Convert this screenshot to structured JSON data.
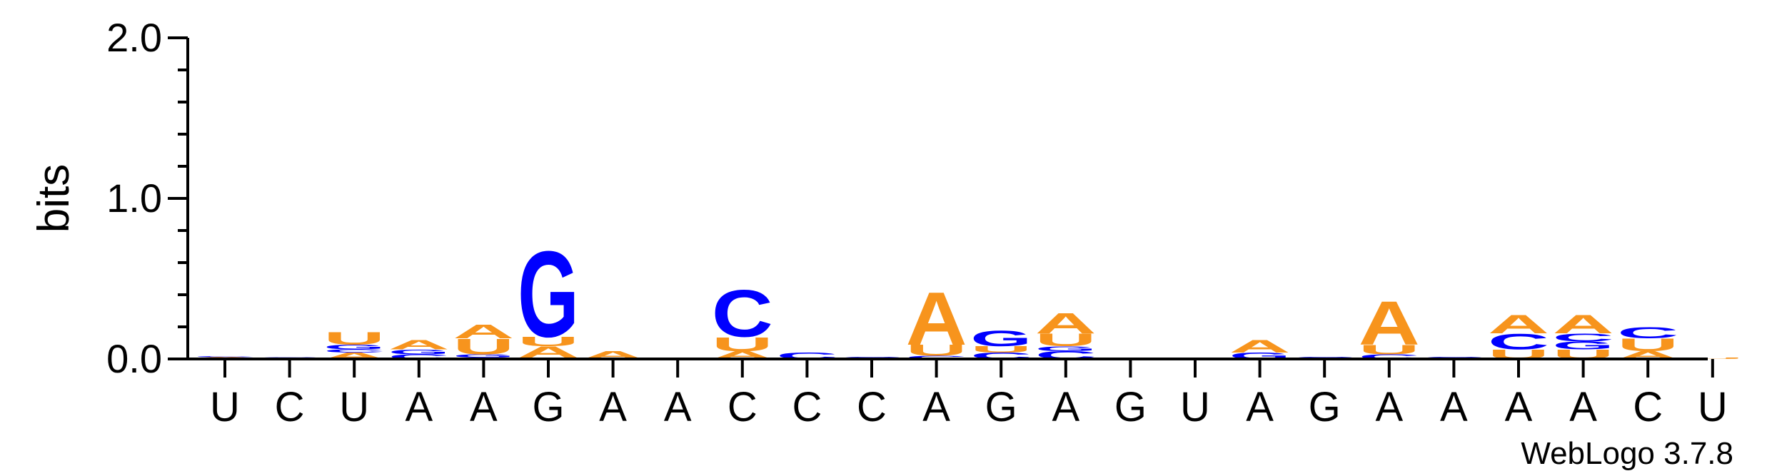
{
  "chart_data": {
    "type": "sequence-logo",
    "ylabel": "bits",
    "ylim": [
      0,
      2.0
    ],
    "yticks": [
      {
        "value": 0.0,
        "label": "0.0"
      },
      {
        "value": 1.0,
        "label": "1.0"
      },
      {
        "value": 2.0,
        "label": "2.0"
      }
    ],
    "categories": [
      "U",
      "C",
      "U",
      "A",
      "A",
      "G",
      "A",
      "A",
      "C",
      "C",
      "C",
      "A",
      "G",
      "A",
      "G",
      "U",
      "A",
      "G",
      "A",
      "A",
      "A",
      "A",
      "C",
      "U"
    ],
    "colors": {
      "A": "#f7941d",
      "U": "#f7941d",
      "C": "#0000ff",
      "G": "#0000ff"
    },
    "stacks": [
      [
        {
          "letter": "U",
          "bits": 0.006
        },
        {
          "letter": "A",
          "bits": 0.006
        },
        {
          "letter": "C",
          "bits": 0.006
        }
      ],
      [
        {
          "letter": "A",
          "bits": 0.004
        },
        {
          "letter": "C",
          "bits": 0.006
        }
      ],
      [
        {
          "letter": "A",
          "bits": 0.04
        },
        {
          "letter": "C",
          "bits": 0.02
        },
        {
          "letter": "G",
          "bits": 0.03
        },
        {
          "letter": "U",
          "bits": 0.08
        }
      ],
      [
        {
          "letter": "C",
          "bits": 0.03
        },
        {
          "letter": "G",
          "bits": 0.03
        },
        {
          "letter": "A",
          "bits": 0.06
        }
      ],
      [
        {
          "letter": "C",
          "bits": 0.01
        },
        {
          "letter": "G",
          "bits": 0.02
        },
        {
          "letter": "U",
          "bits": 0.1
        },
        {
          "letter": "A",
          "bits": 0.09
        }
      ],
      [
        {
          "letter": "C",
          "bits": 0.01
        },
        {
          "letter": "A",
          "bits": 0.07
        },
        {
          "letter": "U",
          "bits": 0.06
        },
        {
          "letter": "G",
          "bits": 0.55
        }
      ],
      [
        {
          "letter": "A",
          "bits": 0.05
        }
      ],
      [],
      [
        {
          "letter": "A",
          "bits": 0.05
        },
        {
          "letter": "U",
          "bits": 0.09
        },
        {
          "letter": "C",
          "bits": 0.3
        }
      ],
      [
        {
          "letter": "C",
          "bits": 0.04
        }
      ],
      [
        {
          "letter": "C",
          "bits": 0.015
        }
      ],
      [
        {
          "letter": "C",
          "bits": 0.02
        },
        {
          "letter": "U",
          "bits": 0.07
        },
        {
          "letter": "A",
          "bits": 0.34
        }
      ],
      [
        {
          "letter": "C",
          "bits": 0.04
        },
        {
          "letter": "U",
          "bits": 0.04
        },
        {
          "letter": "G",
          "bits": 0.1
        }
      ],
      [
        {
          "letter": "C",
          "bits": 0.05
        },
        {
          "letter": "G",
          "bits": 0.03
        },
        {
          "letter": "U",
          "bits": 0.08
        },
        {
          "letter": "A",
          "bits": 0.13
        }
      ],
      [
        {
          "letter": "C",
          "bits": 0.01
        }
      ],
      [],
      [
        {
          "letter": "G",
          "bits": 0.04
        },
        {
          "letter": "A",
          "bits": 0.08
        }
      ],
      [
        {
          "letter": "C",
          "bits": 0.015
        }
      ],
      [
        {
          "letter": "C",
          "bits": 0.03
        },
        {
          "letter": "U",
          "bits": 0.06
        },
        {
          "letter": "A",
          "bits": 0.28
        }
      ],
      [
        {
          "letter": "C",
          "bits": 0.015
        }
      ],
      [
        {
          "letter": "U",
          "bits": 0.06
        },
        {
          "letter": "C",
          "bits": 0.1
        },
        {
          "letter": "A",
          "bits": 0.12
        }
      ],
      [
        {
          "letter": "U",
          "bits": 0.06
        },
        {
          "letter": "G",
          "bits": 0.05
        },
        {
          "letter": "C",
          "bits": 0.05
        },
        {
          "letter": "A",
          "bits": 0.12
        }
      ],
      [
        {
          "letter": "A",
          "bits": 0.05
        },
        {
          "letter": "U",
          "bits": 0.08
        },
        {
          "letter": "C",
          "bits": 0.07
        }
      ],
      [
        {
          "letter": "U",
          "bits": 0.01
        }
      ]
    ]
  },
  "footer": {
    "version": "WebLogo 3.7.8"
  }
}
